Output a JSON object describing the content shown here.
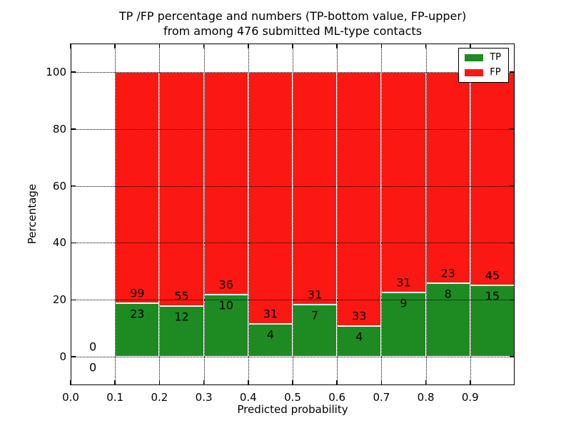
{
  "chart_data": {
    "type": "bar",
    "stacked": true,
    "normalized": "each bin scaled to 100%",
    "title_lines": [
      "TP /FP percentage and numbers (TP-bottom value, FP-upper)",
      "from among 476 submitted ML-type contacts"
    ],
    "xlabel": "Predicted probability",
    "ylabel": "Percentage",
    "xlim": [
      0.0,
      1.0
    ],
    "ylim": [
      -10,
      110
    ],
    "xticks": [
      0.0,
      0.1,
      0.2,
      0.3,
      0.4,
      0.5,
      0.6,
      0.7,
      0.8,
      0.9
    ],
    "yticks": [
      0,
      20,
      40,
      60,
      80,
      100
    ],
    "grid": true,
    "legend_position": "upper right",
    "series": [
      {
        "name": "TP",
        "color": "#1e8b22"
      },
      {
        "name": "FP",
        "color": "#fb1812"
      }
    ],
    "bins": [
      {
        "x_range": [
          0.0,
          0.1
        ],
        "TP": 0,
        "FP": 0
      },
      {
        "x_range": [
          0.1,
          0.2
        ],
        "TP": 23,
        "FP": 99
      },
      {
        "x_range": [
          0.2,
          0.3
        ],
        "TP": 12,
        "FP": 55
      },
      {
        "x_range": [
          0.3,
          0.4
        ],
        "TP": 10,
        "FP": 36
      },
      {
        "x_range": [
          0.4,
          0.5
        ],
        "TP": 4,
        "FP": 31
      },
      {
        "x_range": [
          0.5,
          0.6
        ],
        "TP": 7,
        "FP": 31
      },
      {
        "x_range": [
          0.6,
          0.7
        ],
        "TP": 4,
        "FP": 33
      },
      {
        "x_range": [
          0.7,
          0.8
        ],
        "TP": 9,
        "FP": 31
      },
      {
        "x_range": [
          0.8,
          0.9
        ],
        "TP": 8,
        "FP": 23
      },
      {
        "x_range": [
          0.9,
          1.0
        ],
        "TP": 15,
        "FP": 45
      }
    ],
    "total_submitted": 476
  }
}
